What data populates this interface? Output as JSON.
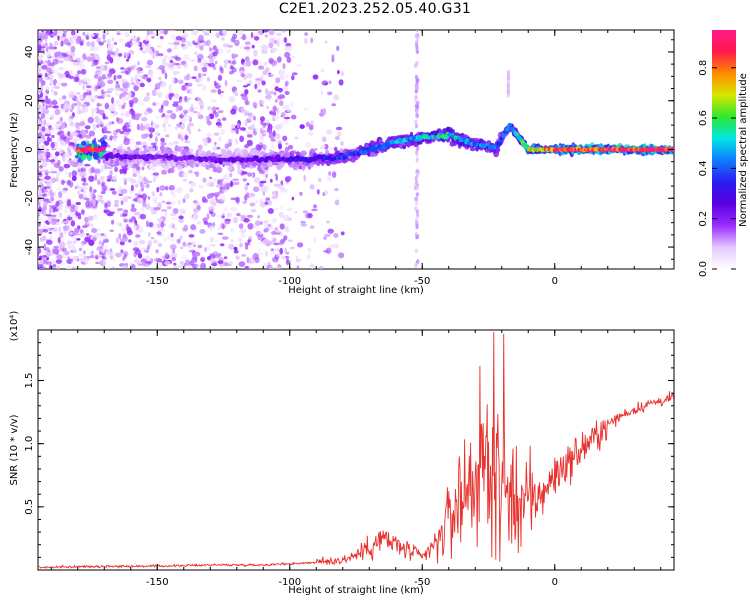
{
  "title": "C2E1.2023.252.05.40.G31",
  "colors": {
    "snr_line": "#e8322e",
    "colormap": [
      "#ffffff",
      "#e4c8ff",
      "#9a2cff",
      "#5a00e0",
      "#2a1cf0",
      "#0f7cff",
      "#00e5e5",
      "#2ee82e",
      "#d8e800",
      "#ff8c00",
      "#ff1a4a",
      "#ff1a8a"
    ]
  },
  "chart_data": [
    {
      "type": "heatmap",
      "xlabel": "Height of straight line (km)",
      "ylabel": "Frequency (Hz)",
      "xlim": [
        -195,
        45
      ],
      "ylim": [
        -49,
        49
      ],
      "xticks": [
        -150,
        -100,
        -50,
        0
      ],
      "yticks": [
        -40,
        -20,
        0,
        20,
        40
      ],
      "colorbar": {
        "label": "Normalized spectral amplitude",
        "range": [
          0,
          0.95
        ],
        "ticks": [
          "0.0",
          "0.2",
          "0.4",
          "0.6",
          "0.8"
        ]
      },
      "ridge": [
        {
          "x": -170,
          "f": -3,
          "amp": 0.25
        },
        {
          "x": -150,
          "f": -3,
          "amp": 0.22
        },
        {
          "x": -130,
          "f": -4,
          "amp": 0.22
        },
        {
          "x": -110,
          "f": -4,
          "amp": 0.25
        },
        {
          "x": -95,
          "f": -4,
          "amp": 0.3
        },
        {
          "x": -80,
          "f": -3,
          "amp": 0.35
        },
        {
          "x": -70,
          "f": 0,
          "amp": 0.4
        },
        {
          "x": -60,
          "f": 3,
          "amp": 0.45
        },
        {
          "x": -50,
          "f": 5,
          "amp": 0.5
        },
        {
          "x": -40,
          "f": 6,
          "amp": 0.55
        },
        {
          "x": -30,
          "f": 2,
          "amp": 0.45
        },
        {
          "x": -22,
          "f": 1,
          "amp": 0.4
        },
        {
          "x": -17,
          "f": 10,
          "amp": 0.4
        },
        {
          "x": -10,
          "f": 0,
          "amp": 0.7
        },
        {
          "x": 0,
          "f": 0,
          "amp": 0.85
        },
        {
          "x": 20,
          "f": 0,
          "amp": 0.9
        },
        {
          "x": 45,
          "f": 0,
          "amp": 0.95
        }
      ]
    },
    {
      "type": "line",
      "xlabel": "Height of straight line (km)",
      "ylabel": "SNR (10 * v/v)",
      "yscale_label": "(x10⁴)",
      "xlim": [
        -195,
        45
      ],
      "ylim": [
        0,
        1.9
      ],
      "xticks": [
        -150,
        -100,
        -50,
        0
      ],
      "yticks": [
        "0.5",
        "1.0",
        "1.5"
      ],
      "series": [
        {
          "x": [
            -195,
            -170,
            -150,
            -130,
            -110,
            -100,
            -90,
            -80,
            -75,
            -70,
            -65,
            -60,
            -55,
            -50,
            -45,
            -40,
            -35,
            -30,
            -25,
            -20,
            -15,
            -10,
            -5,
            0,
            5,
            10,
            15,
            20,
            25,
            30,
            35,
            40,
            45
          ],
          "y": [
            0.02,
            0.03,
            0.03,
            0.04,
            0.04,
            0.05,
            0.06,
            0.08,
            0.12,
            0.18,
            0.25,
            0.2,
            0.15,
            0.1,
            0.2,
            0.4,
            0.6,
            0.75,
            0.8,
            0.7,
            0.6,
            0.5,
            0.6,
            0.75,
            0.85,
            0.95,
            1.05,
            1.15,
            1.22,
            1.27,
            1.31,
            1.34,
            1.36
          ]
        }
      ]
    }
  ]
}
